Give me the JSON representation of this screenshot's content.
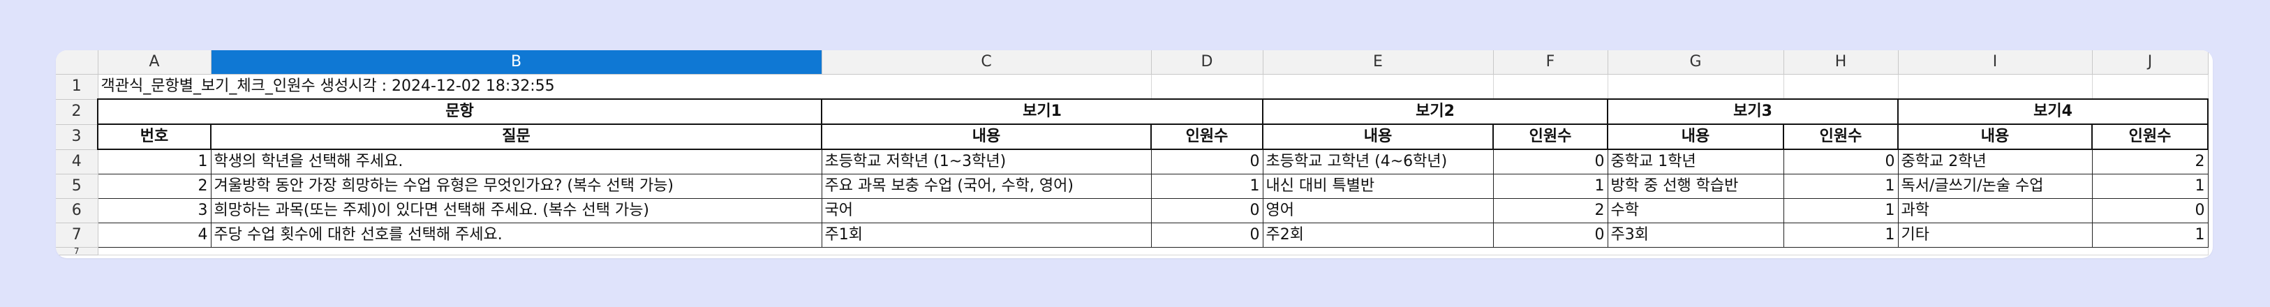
{
  "columns": [
    "A",
    "B",
    "C",
    "D",
    "E",
    "F",
    "G",
    "H",
    "I",
    "J"
  ],
  "selected_column": "B",
  "rows": {
    "r1": "1",
    "r2": "2",
    "r3": "3",
    "r4": "4",
    "r5": "5",
    "r6": "6",
    "r7": "7",
    "r8": "7"
  },
  "title_cell": "객관식_문항별_보기_체크_인원수 생성시각 : 2024-12-02 18:32:55",
  "header": {
    "question_group": "문항",
    "option1": "보기1",
    "option2": "보기2",
    "option3": "보기3",
    "option4": "보기4",
    "number": "번호",
    "question": "질문",
    "content": "내용",
    "count": "인원수"
  },
  "data_rows": [
    {
      "no": "1",
      "question": "학생의 학년을 선택해 주세요.",
      "o1": "초등학교 저학년 (1~3학년)",
      "c1": "0",
      "o2": "초등학교 고학년 (4~6학년)",
      "c2": "0",
      "o3": "중학교 1학년",
      "c3": "0",
      "o4": "중학교 2학년",
      "c4": "2"
    },
    {
      "no": "2",
      "question": "겨울방학 동안 가장 희망하는 수업 유형은 무엇인가요? (복수 선택 가능)",
      "o1": "주요 과목 보충 수업 (국어, 수학, 영어)",
      "c1": "1",
      "o2": "내신 대비 특별반",
      "c2": "1",
      "o3": "방학 중 선행 학습반",
      "c3": "1",
      "o4": "독서/글쓰기/논술 수업",
      "c4": "1"
    },
    {
      "no": "3",
      "question": "희망하는 과목(또는 주제)이 있다면 선택해 주세요. (복수 선택 가능)",
      "o1": "국어",
      "c1": "0",
      "o2": "영어",
      "c2": "2",
      "o3": "수학",
      "c3": "1",
      "o4": "과학",
      "c4": "0"
    },
    {
      "no": "4",
      "question": "주당 수업 횟수에 대한 선호를 선택해 주세요.",
      "o1": "주1회",
      "c1": "0",
      "o2": "주2회",
      "c2": "0",
      "o3": "주3회",
      "c3": "1",
      "o4": "기타",
      "c4": "1"
    }
  ],
  "colors": {
    "selected_header": "#0f78d4",
    "background": "#dfe3fb",
    "spellcheck": "#e02020"
  }
}
